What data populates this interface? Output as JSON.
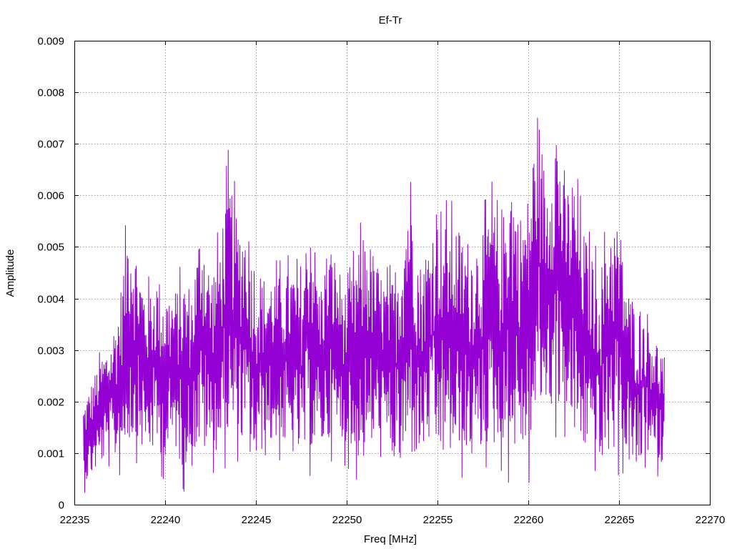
{
  "chart_data": {
    "type": "line",
    "title": "Ef-Tr",
    "xlabel": "Freq [MHz]",
    "ylabel": "Amplitude",
    "xlim": [
      22235,
      22270
    ],
    "ylim": [
      0,
      0.009
    ],
    "x_ticks": [
      "22235",
      "22240",
      "22245",
      "22250",
      "22255",
      "22260",
      "22265",
      "22270"
    ],
    "y_ticks": [
      "0",
      "0.001",
      "0.002",
      "0.003",
      "0.004",
      "0.005",
      "0.006",
      "0.007",
      "0.008",
      "0.009"
    ],
    "grid": true,
    "line_color": "#9400d3",
    "series": [
      {
        "x": [
          22235.5,
          22236.5,
          22237.0,
          22237.5,
          22238.0,
          22238.5,
          22239.0,
          22239.5,
          22240.0,
          22240.5,
          22241.0,
          22241.5,
          22242.0,
          22242.5,
          22243.0,
          22243.5,
          22244.0,
          22244.5,
          22245.0,
          22245.5,
          22246.0,
          22246.5,
          22247.0,
          22247.5,
          22248.0,
          22248.5,
          22249.0,
          22249.5,
          22250.0,
          22250.5,
          22251.0,
          22251.5,
          22252.0,
          22252.5,
          22253.0,
          22253.5,
          22254.0,
          22254.5,
          22255.0,
          22255.5,
          22256.0,
          22256.5,
          22257.0,
          22257.5,
          22258.0,
          22258.5,
          22259.0,
          22259.5,
          22260.0,
          22260.5,
          22261.0,
          22261.5,
          22262.0,
          22262.5,
          22263.0,
          22263.5,
          22264.0,
          22264.5,
          22265.0,
          22265.5,
          22266.0,
          22266.5,
          22267.0,
          22267.5
        ],
        "lo": [
          0.0002,
          0.0006,
          0.0007,
          0.0005,
          0.0008,
          0.0008,
          0.0007,
          0.0007,
          0.0004,
          0.0009,
          0.0002,
          0.0007,
          0.0006,
          0.0006,
          0.0006,
          0.0007,
          0.0008,
          0.0006,
          0.0003,
          0.0009,
          0.0008,
          0.0008,
          0.0006,
          0.0006,
          0.0005,
          0.0008,
          0.0008,
          0.0009,
          0.0007,
          0.0004,
          0.0004,
          0.0008,
          0.0009,
          0.0005,
          0.0002,
          0.0004,
          0.0005,
          0.0008,
          0.0003,
          0.0005,
          0.0005,
          0.0004,
          0.0005,
          0.0006,
          0.0007,
          0.0006,
          0.0003,
          0.0008,
          0.0002,
          0.0012,
          0.0015,
          0.0012,
          0.0012,
          0.0008,
          0.0006,
          0.0008,
          0.0002,
          0.0006,
          0.0005,
          0.0005,
          0.0002,
          0.0007,
          0.0005,
          0.0006
        ],
        "hi": [
          0.0021,
          0.0031,
          0.0034,
          0.0043,
          0.0061,
          0.0051,
          0.0044,
          0.0048,
          0.0045,
          0.0044,
          0.0048,
          0.0045,
          0.0061,
          0.0048,
          0.0055,
          0.007,
          0.0059,
          0.006,
          0.005,
          0.0047,
          0.0048,
          0.0048,
          0.005,
          0.0047,
          0.0063,
          0.0045,
          0.0055,
          0.005,
          0.0044,
          0.0052,
          0.0058,
          0.0052,
          0.0047,
          0.0047,
          0.0056,
          0.0071,
          0.005,
          0.0055,
          0.0065,
          0.006,
          0.0059,
          0.0056,
          0.0055,
          0.0058,
          0.0064,
          0.0057,
          0.0072,
          0.006,
          0.0065,
          0.0083,
          0.0066,
          0.0083,
          0.0065,
          0.0069,
          0.0058,
          0.0052,
          0.005,
          0.006,
          0.0059,
          0.0045,
          0.0042,
          0.0041,
          0.0035,
          0.0031
        ]
      }
    ]
  }
}
